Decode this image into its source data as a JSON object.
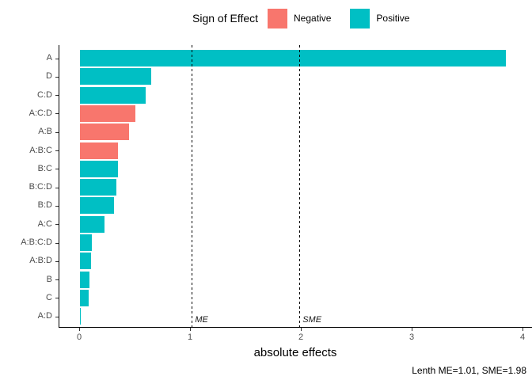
{
  "chart_data": {
    "type": "bar",
    "orientation": "horizontal",
    "legend": {
      "title": "Sign of Effect",
      "position": "top",
      "entries": [
        {
          "label": "Negative",
          "color": "#F8766D"
        },
        {
          "label": "Positive",
          "color": "#00BFC4"
        }
      ]
    },
    "categories": [
      "A",
      "D",
      "C:D",
      "A:C:D",
      "A:B",
      "A:B:C",
      "B:C",
      "B:C:D",
      "B:D",
      "A:C",
      "A:B:C:D",
      "A:B:D",
      "B",
      "C",
      "A:D"
    ],
    "values": [
      3.84,
      0.64,
      0.59,
      0.5,
      0.44,
      0.345,
      0.34,
      0.33,
      0.31,
      0.22,
      0.11,
      0.1,
      0.085,
      0.08,
      0.01
    ],
    "signs": [
      "positive",
      "positive",
      "positive",
      "negative",
      "negative",
      "negative",
      "positive",
      "positive",
      "positive",
      "positive",
      "positive",
      "positive",
      "positive",
      "positive",
      "positive"
    ],
    "xlabel": "absolute effects",
    "xlim": [
      0,
      4
    ],
    "xticks": [
      0,
      1,
      2,
      3,
      4
    ],
    "grid": false,
    "reference_lines": [
      {
        "label": "ME",
        "value": 1.01
      },
      {
        "label": "SME",
        "value": 1.98
      }
    ],
    "caption": "Lenth ME=1.01, SME=1.98"
  },
  "colors": {
    "negative": "#F8766D",
    "positive": "#00BFC4",
    "axis_text": "#4D4D4D",
    "axis_line": "#000000"
  }
}
